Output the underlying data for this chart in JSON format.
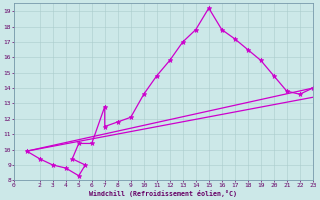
{
  "xlabel": "Windchill (Refroidissement éolien,°C)",
  "bg_color": "#cce8e8",
  "line_color": "#cc00cc",
  "grid_color": "#aacccc",
  "xlim": [
    0,
    23
  ],
  "ylim": [
    8,
    19.5
  ],
  "xticks": [
    0,
    2,
    3,
    4,
    5,
    6,
    7,
    8,
    9,
    10,
    11,
    12,
    13,
    14,
    15,
    16,
    17,
    18,
    19,
    20,
    21,
    22,
    23
  ],
  "yticks": [
    8,
    9,
    10,
    11,
    12,
    13,
    14,
    15,
    16,
    17,
    18,
    19
  ],
  "series": [
    [
      1.0,
      9.9
    ],
    [
      2.0,
      9.4
    ],
    [
      3.0,
      9.0
    ],
    [
      4.0,
      8.8
    ],
    [
      5.0,
      8.3
    ],
    [
      5.5,
      9.0
    ],
    [
      4.5,
      9.4
    ],
    [
      5.0,
      10.4
    ],
    [
      6.0,
      10.4
    ],
    [
      7.0,
      12.8
    ],
    [
      7.0,
      11.5
    ],
    [
      8.0,
      11.8
    ],
    [
      9.0,
      12.1
    ],
    [
      10.0,
      13.6
    ],
    [
      11.0,
      14.8
    ],
    [
      12.0,
      15.8
    ],
    [
      13.0,
      17.0
    ],
    [
      14.0,
      17.8
    ],
    [
      15.0,
      19.2
    ],
    [
      16.0,
      17.8
    ],
    [
      17.0,
      17.2
    ],
    [
      18.0,
      16.5
    ],
    [
      19.0,
      15.8
    ],
    [
      20.0,
      14.8
    ],
    [
      21.0,
      13.8
    ],
    [
      22.0,
      13.6
    ],
    [
      23.0,
      14.0
    ]
  ],
  "line1": [
    [
      1.0,
      9.9
    ],
    [
      23.0,
      14.0
    ]
  ],
  "line2": [
    [
      1.0,
      9.9
    ],
    [
      23.0,
      13.4
    ]
  ],
  "figwidth": 3.2,
  "figheight": 2.0,
  "dpi": 100
}
